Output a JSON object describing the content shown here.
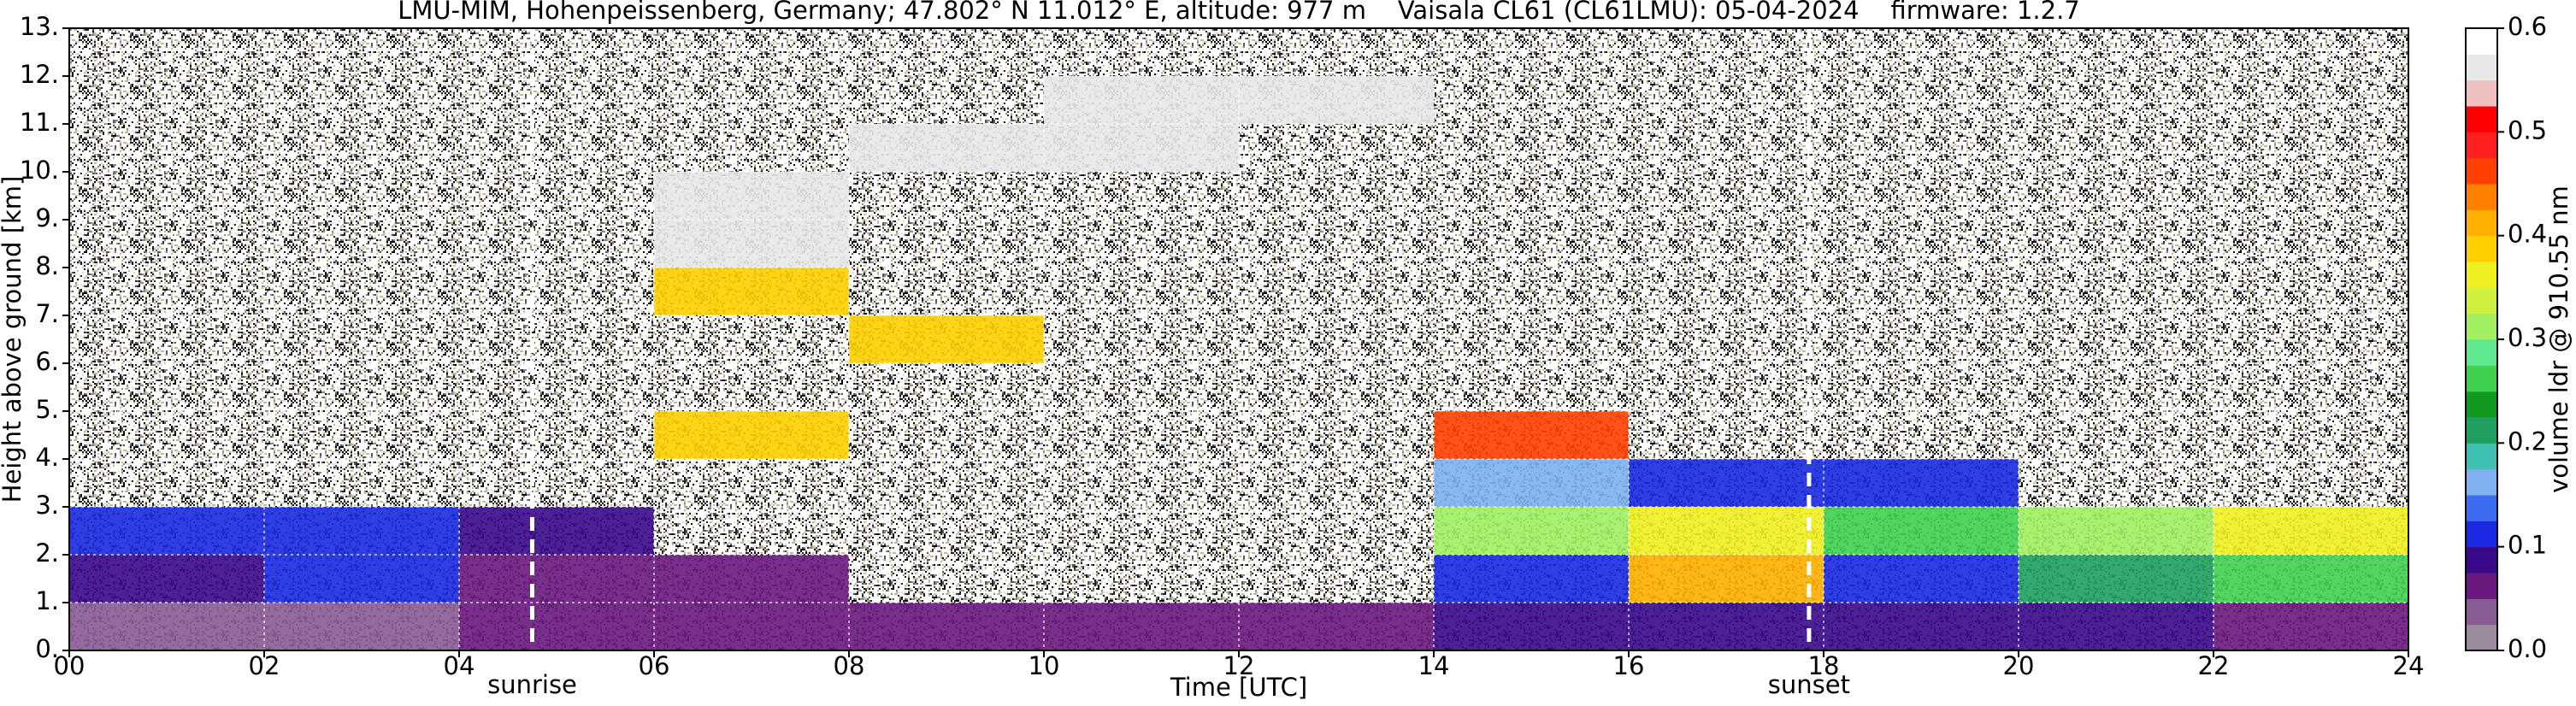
{
  "chart_data": {
    "type": "heatmap",
    "title": "LMU-MIM, Hohenpeissenberg, Germany; 47.802° N 11.012° E, altitude: 977 m    Vaisala CL61 (CL61LMU): 05-04-2024    firmware: 1.2.7",
    "x_label": "Time [UTC]",
    "y_label": "Height above ground [km]",
    "xlim": [
      0,
      24
    ],
    "ylim": [
      0,
      13
    ],
    "xticks": [
      {
        "value": 0,
        "label": "00"
      },
      {
        "value": 2,
        "label": "02"
      },
      {
        "value": 4,
        "label": "04"
      },
      {
        "value": 6,
        "label": "06"
      },
      {
        "value": 8,
        "label": "08"
      },
      {
        "value": 10,
        "label": "10"
      },
      {
        "value": 12,
        "label": "12"
      },
      {
        "value": 14,
        "label": "14"
      },
      {
        "value": 16,
        "label": "16"
      },
      {
        "value": 18,
        "label": "18"
      },
      {
        "value": 20,
        "label": "20"
      },
      {
        "value": 22,
        "label": "22"
      },
      {
        "value": 24,
        "label": "24"
      }
    ],
    "yticks": [
      {
        "value": 0,
        "label": "0."
      },
      {
        "value": 1,
        "label": "1."
      },
      {
        "value": 2,
        "label": "2."
      },
      {
        "value": 3,
        "label": "3."
      },
      {
        "value": 4,
        "label": "4."
      },
      {
        "value": 5,
        "label": "5."
      },
      {
        "value": 6,
        "label": "6."
      },
      {
        "value": 7,
        "label": "7."
      },
      {
        "value": 8,
        "label": "8."
      },
      {
        "value": 9,
        "label": "9."
      },
      {
        "value": 10,
        "label": "10."
      },
      {
        "value": 11,
        "label": "11."
      },
      {
        "value": 12,
        "label": "12."
      },
      {
        "value": 13,
        "label": "13."
      }
    ],
    "grid": true,
    "x_edges": [
      0,
      2,
      4,
      6,
      8,
      10,
      12,
      14,
      16,
      18,
      20,
      22,
      24
    ],
    "y_edges": [
      0,
      1,
      2,
      3,
      4,
      5,
      6,
      7,
      8,
      9,
      10,
      11,
      12,
      13
    ],
    "z": [
      [
        0.04,
        0.04,
        0.05,
        0.05,
        0.06,
        0.06,
        0.07,
        0.08,
        0.09,
        0.09,
        0.08,
        0.06
      ],
      [
        0.08,
        0.1,
        0.06,
        0.05,
        null,
        null,
        null,
        0.12,
        0.4,
        0.1,
        0.2,
        0.25
      ],
      [
        0.12,
        0.1,
        0.08,
        null,
        null,
        null,
        null,
        0.3,
        0.35,
        0.25,
        0.3,
        0.35
      ],
      [
        null,
        null,
        null,
        null,
        null,
        null,
        null,
        0.15,
        0.1,
        0.12,
        null,
        null
      ],
      [
        null,
        null,
        null,
        0.38,
        null,
        null,
        null,
        0.45,
        null,
        null,
        null,
        null
      ],
      [
        null,
        null,
        null,
        null,
        null,
        null,
        null,
        null,
        null,
        null,
        null,
        null
      ],
      [
        null,
        null,
        null,
        null,
        0.38,
        null,
        null,
        null,
        null,
        null,
        null,
        null
      ],
      [
        null,
        null,
        null,
        0.38,
        null,
        null,
        null,
        null,
        null,
        null,
        null,
        null
      ],
      [
        null,
        null,
        null,
        0.55,
        null,
        null,
        null,
        null,
        null,
        null,
        null,
        null
      ],
      [
        null,
        null,
        null,
        0.55,
        null,
        null,
        null,
        null,
        null,
        null,
        null,
        null
      ],
      [
        null,
        null,
        null,
        null,
        0.55,
        0.55,
        null,
        null,
        null,
        null,
        null,
        null
      ],
      [
        null,
        null,
        null,
        null,
        null,
        0.55,
        0.55,
        null,
        null,
        null,
        null,
        null
      ],
      [
        null,
        null,
        null,
        null,
        null,
        null,
        null,
        null,
        null,
        null,
        null,
        null
      ]
    ],
    "annotations": [
      {
        "x": 4.75,
        "text": "sunrise"
      },
      {
        "x": 17.85,
        "text": "sunset"
      }
    ],
    "colorbar": {
      "label": "volume ldr @ 910.55 nm",
      "lim": [
        0,
        0.6
      ],
      "ticks": [
        {
          "value": 0,
          "label": "0.0"
        },
        0.1,
        0.2,
        0.3,
        0.4,
        0.5,
        0.6
      ],
      "colors": [
        "#9b8a9e",
        "#8a5c96",
        "#6a1a7e",
        "#3a0a8c",
        "#1a2ae0",
        "#3c6cf0",
        "#80b0f0",
        "#40c0b0",
        "#20a060",
        "#109a20",
        "#40d050",
        "#60e890",
        "#a0f060",
        "#d0f040",
        "#f0f020",
        "#ffd000",
        "#ffb000",
        "#ff8000",
        "#ff4000",
        "#ff2020",
        "#ff0000",
        "#f0c0c0",
        "#e8e8e8",
        "#ffffff"
      ]
    }
  }
}
